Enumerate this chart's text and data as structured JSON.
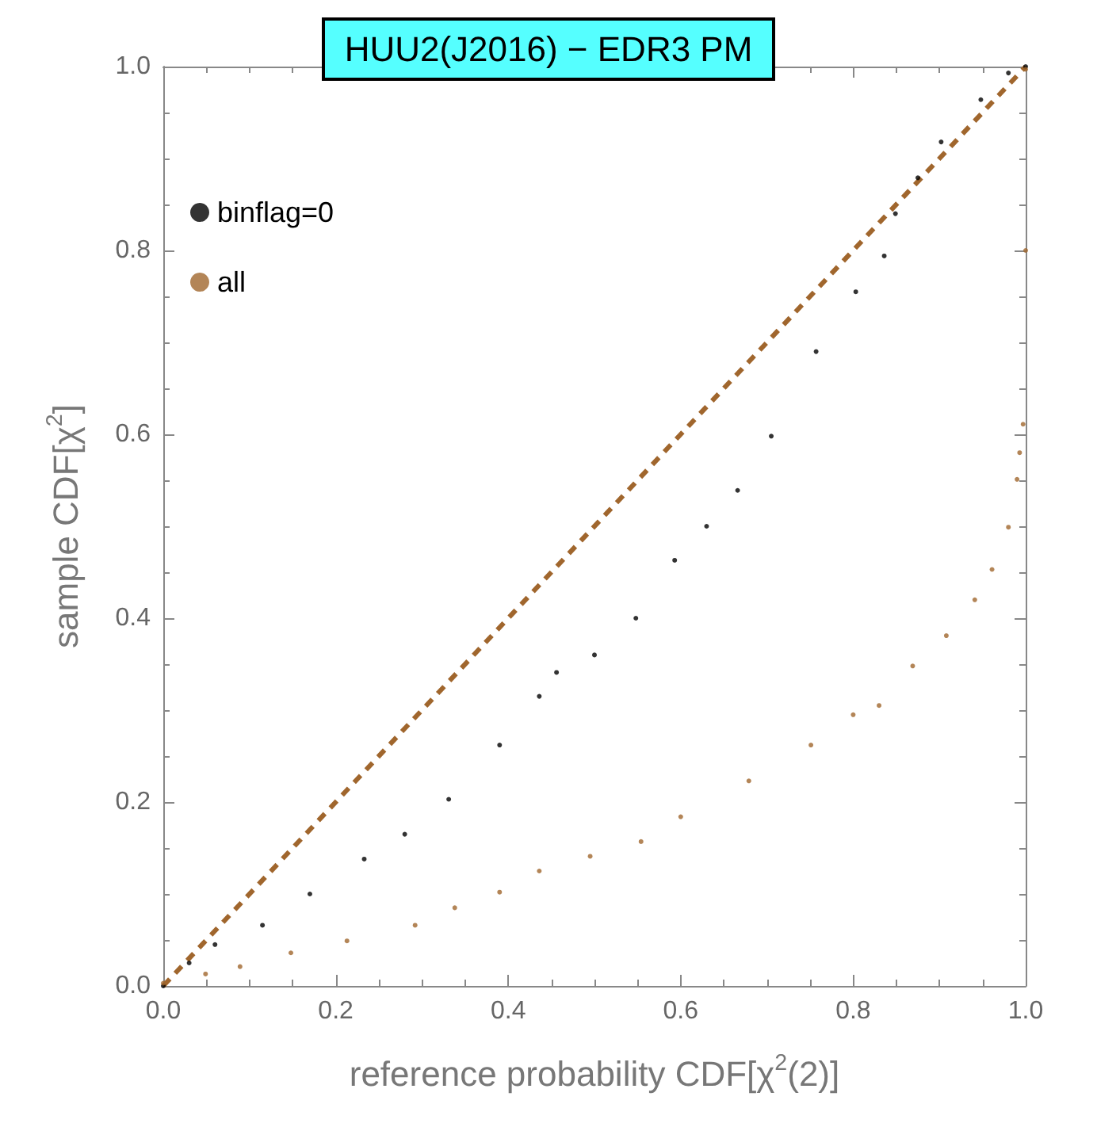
{
  "chart_data": {
    "type": "scatter",
    "title": "HUU2(J2016) − EDR3 PM",
    "xlabel": "reference probability CDF[χ$^{2}$(2)]",
    "ylabel": "sample CDF[χ$^{2}$]",
    "xlim": [
      0,
      1
    ],
    "ylim": [
      0,
      1
    ],
    "xticks": [
      {
        "value": 0,
        "label": "0.0"
      },
      {
        "value": 0.2,
        "label": "0.2"
      },
      {
        "value": 0.4,
        "label": "0.4"
      },
      {
        "value": 0.6,
        "label": "0.6"
      },
      {
        "value": 0.8,
        "label": "0.8"
      },
      {
        "value": 1,
        "label": "1.0"
      }
    ],
    "yticks": [
      {
        "value": 0,
        "label": "0.0"
      },
      {
        "value": 0.2,
        "label": "0.2"
      },
      {
        "value": 0.4,
        "label": "0.4"
      },
      {
        "value": 0.6,
        "label": "0.6"
      },
      {
        "value": 0.8,
        "label": "0.8"
      },
      {
        "value": 1,
        "label": "1.0"
      }
    ],
    "grid": false,
    "legend": "top left",
    "marker": "circle",
    "series": [
      {
        "name": "binflag=0",
        "color": "#000000",
        "x": [
          0,
          0.03,
          0.06,
          0.115,
          0.17,
          0.233,
          0.28,
          0.331,
          0.39,
          0.436,
          0.456,
          0.5,
          0.548,
          0.593,
          0.63,
          0.666,
          0.705,
          0.757,
          0.803,
          0.836,
          0.849,
          0.875,
          0.902,
          0.948,
          0.98,
          1.0
        ],
        "values": [
          0,
          0.025,
          0.045,
          0.066,
          0.1,
          0.138,
          0.165,
          0.203,
          0.262,
          0.315,
          0.341,
          0.36,
          0.4,
          0.463,
          0.5,
          0.539,
          0.598,
          0.69,
          0.755,
          0.794,
          0.84,
          0.879,
          0.918,
          0.964,
          0.993,
          1.0
        ]
      },
      {
        "name": "all",
        "color": "#a0662d",
        "x": [
          0,
          0.049,
          0.089,
          0.148,
          0.213,
          0.292,
          0.338,
          0.39,
          0.436,
          0.495,
          0.554,
          0.6,
          0.679,
          0.751,
          0.8,
          0.83,
          0.869,
          0.908,
          0.941,
          0.961,
          0.98,
          0.99,
          0.993,
          0.997,
          1.0,
          1.0
        ],
        "values": [
          0.003,
          0.013,
          0.021,
          0.036,
          0.049,
          0.066,
          0.085,
          0.102,
          0.125,
          0.141,
          0.157,
          0.184,
          0.223,
          0.262,
          0.295,
          0.305,
          0.348,
          0.381,
          0.42,
          0.453,
          0.499,
          0.551,
          0.58,
          0.611,
          0.8,
          0.997
        ]
      },
      {
        "type": "line",
        "color": "#a0662d",
        "line_style": "dashed",
        "marker": "none",
        "x": [
          0,
          1
        ],
        "values": [
          0,
          1
        ]
      }
    ]
  }
}
